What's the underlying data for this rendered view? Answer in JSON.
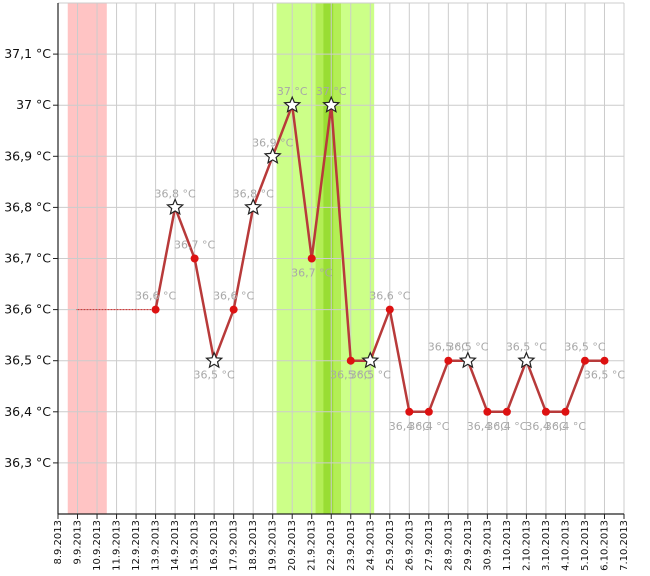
{
  "chart_data": {
    "type": "line",
    "title": "",
    "xlabel": "",
    "ylabel": "",
    "ylim": [
      36.2,
      37.2
    ],
    "grid": true,
    "legend": "none",
    "y_ticks": [
      "36,3 °C",
      "36,4 °C",
      "36,5 °C",
      "36,6 °C",
      "36,7 °C",
      "36,8 °C",
      "36,9 °C",
      "37 °C",
      "37,1 °C"
    ],
    "y_tick_values": [
      36.3,
      36.4,
      36.5,
      36.6,
      36.7,
      36.8,
      36.9,
      37.0,
      37.1
    ],
    "dates": [
      "8.9.2013",
      "9.9.2013",
      "10.9.2013",
      "11.9.2013",
      "12.9.2013",
      "13.9.2013",
      "14.9.2013",
      "15.9.2013",
      "16.9.2013",
      "17.9.2013",
      "18.9.2013",
      "19.9.2013",
      "20.9.2013",
      "21.9.2013",
      "22.9.2013",
      "23.9.2013",
      "24.9.2013",
      "25.9.2013",
      "26.9.2013",
      "27.9.2013",
      "28.9.2013",
      "29.9.2013",
      "30.9.2013",
      "1.10.2013",
      "2.10.2013",
      "3.10.2013",
      "4.10.2013",
      "5.10.2013",
      "6.10.2013",
      "7.10.2013"
    ],
    "series": [
      {
        "points": [
          {
            "date": "13.9.2013",
            "value": 36.6,
            "label": "36,6 °C",
            "marker": "dot"
          },
          {
            "date": "14.9.2013",
            "value": 36.8,
            "label": "36,8 °C",
            "marker": "star"
          },
          {
            "date": "15.9.2013",
            "value": 36.7,
            "label": "36,7 °C",
            "marker": "dot"
          },
          {
            "date": "16.9.2013",
            "value": 36.5,
            "label": "36,5 °C",
            "marker": "star"
          },
          {
            "date": "17.9.2013",
            "value": 36.6,
            "label": "36,6 °C",
            "marker": "dot"
          },
          {
            "date": "18.9.2013",
            "value": 36.8,
            "label": "36,8 °C",
            "marker": "star"
          },
          {
            "date": "19.9.2013",
            "value": 36.9,
            "label": "36,9 °C",
            "marker": "star"
          },
          {
            "date": "20.9.2013",
            "value": 37.0,
            "label": "37 °C",
            "marker": "star"
          },
          {
            "date": "21.9.2013",
            "value": 36.7,
            "label": "36,7 °C",
            "marker": "dot"
          },
          {
            "date": "22.9.2013",
            "value": 37.0,
            "label": "37 °C",
            "marker": "star"
          },
          {
            "date": "23.9.2013",
            "value": 36.5,
            "label": "36,5 °C",
            "marker": "dot"
          },
          {
            "date": "24.9.2013",
            "value": 36.5,
            "label": "36,5 °C",
            "marker": "star"
          },
          {
            "date": "25.9.2013",
            "value": 36.6,
            "label": "36,6 °C",
            "marker": "dot"
          },
          {
            "date": "26.9.2013",
            "value": 36.4,
            "label": "36,4 °C",
            "marker": "dot"
          },
          {
            "date": "27.9.2013",
            "value": 36.4,
            "label": "36,4 °C",
            "marker": "dot"
          },
          {
            "date": "28.9.2013",
            "value": 36.5,
            "label": "36,5 °C",
            "marker": "dot"
          },
          {
            "date": "29.9.2013",
            "value": 36.5,
            "label": "36,5 °C",
            "marker": "star"
          },
          {
            "date": "30.9.2013",
            "value": 36.4,
            "label": "36,4 °C",
            "marker": "dot"
          },
          {
            "date": "1.10.2013",
            "value": 36.4,
            "label": "36,4 °C",
            "marker": "dot"
          },
          {
            "date": "2.10.2013",
            "value": 36.5,
            "label": "36,5 °C",
            "marker": "star"
          },
          {
            "date": "3.10.2013",
            "value": 36.4,
            "label": "36,4 °C",
            "marker": "dot"
          },
          {
            "date": "4.10.2013",
            "value": 36.4,
            "label": "36,4 °C",
            "marker": "dot"
          },
          {
            "date": "5.10.2013",
            "value": 36.5,
            "label": "36,5 °C",
            "marker": "dot"
          },
          {
            "date": "6.10.2013",
            "value": 36.5,
            "label": "36,5 °C",
            "marker": "dot"
          }
        ]
      }
    ],
    "baseline": {
      "from": "9.9.2013",
      "to": "13.9.2013",
      "value": 36.6
    },
    "shaded_bands": [
      {
        "from": "8.9.2013",
        "to": "10.9.2013",
        "color": "#ffc4c4"
      },
      {
        "from": "20.9.2013",
        "to": "25.9.2013",
        "color": "#ccff88"
      },
      {
        "from": "21.9.2013",
        "to": "22.9.2013",
        "color": "#b3ee55"
      },
      {
        "from": "22.9.2013",
        "to": "22.9.2013",
        "color": "#99dd33"
      }
    ],
    "colors": {
      "line": "#b83a3a",
      "dot": "#dd1111",
      "star_fill": "#ffffff",
      "star_stroke": "#222222",
      "grid": "#cccccc",
      "axis": "#222222",
      "baseline": "#cc2222"
    }
  }
}
